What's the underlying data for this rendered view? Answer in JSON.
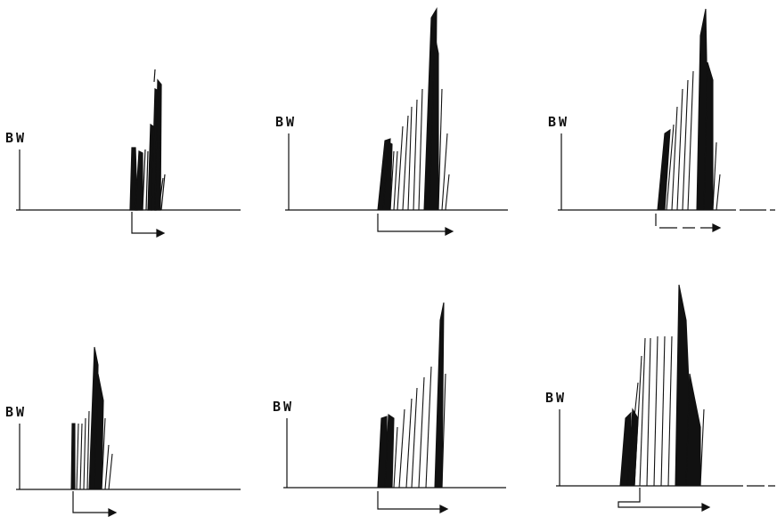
{
  "figure": {
    "panels": [
      {
        "id": "top-left",
        "label": "BW"
      },
      {
        "id": "top-middle",
        "label": "BW"
      },
      {
        "id": "top-right",
        "label": "BW"
      },
      {
        "id": "bottom-left",
        "label": "BW"
      },
      {
        "id": "bottom-middle",
        "label": "BW"
      },
      {
        "id": "bottom-right",
        "label": "BW"
      }
    ],
    "ink_color": "#111111",
    "background_color": "#ffffff"
  }
}
